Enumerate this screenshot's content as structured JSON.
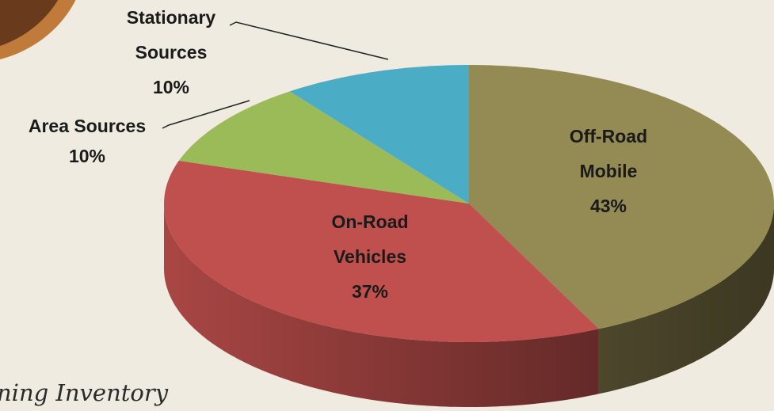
{
  "chart_data": {
    "type": "pie3d",
    "categories": [
      "Off-Road Mobile",
      "On-Road Vehicles",
      "Area Sources",
      "Stationary Sources"
    ],
    "values": [
      43,
      37,
      10,
      10
    ],
    "value_labels": [
      "43%",
      "37%",
      "10%",
      "10%"
    ],
    "colors": [
      "#948a54",
      "#c0504d",
      "#9bbb59",
      "#4bacc6"
    ]
  },
  "footer_text": "ning Inventory"
}
